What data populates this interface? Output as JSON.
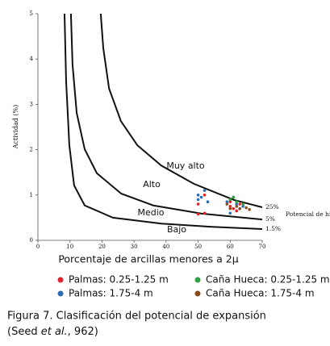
{
  "chart_data": {
    "type": "scatter",
    "y_label": "Actividad (%)",
    "x_label": "Porcentaje de arcillas menores a 2μ",
    "xlim": [
      0,
      70
    ],
    "xticks": [
      0,
      10,
      20,
      30,
      40,
      50,
      60,
      70
    ],
    "ylim": [
      0,
      5
    ],
    "yticks": [
      0,
      1,
      2,
      3,
      4,
      5
    ],
    "zones": [
      "Muy alto",
      "Alto",
      "Medio",
      "Bajo"
    ],
    "curve_group_label": "Potencial de hinchamiento",
    "series": [
      {
        "name": "25%",
        "mode": "line",
        "color": "#111111",
        "x": [
          19.6,
          20.4,
          22.2,
          25.9,
          31.0,
          38.5,
          48.6,
          61.2,
          70
        ],
        "values": [
          5.0,
          4.24,
          3.35,
          2.63,
          2.1,
          1.65,
          1.25,
          0.89,
          0.73
        ]
      },
      {
        "name": "5%",
        "mode": "line",
        "color": "#111111",
        "x": [
          10.3,
          10.8,
          12.1,
          14.6,
          18.4,
          26.0,
          36.0,
          51.1,
          70
        ],
        "values": [
          5.0,
          3.88,
          2.81,
          2.01,
          1.48,
          1.03,
          0.77,
          0.59,
          0.46
        ]
      },
      {
        "name": "1.5%",
        "mode": "line",
        "color": "#111111",
        "x": [
          8.3,
          8.8,
          9.8,
          11.3,
          14.6,
          23.4,
          38.5,
          53.7,
          70
        ],
        "values": [
          5.0,
          3.52,
          2.1,
          1.21,
          0.77,
          0.5,
          0.37,
          0.3,
          0.25
        ]
      },
      {
        "name": "Palmas: 0.25-1.25 m",
        "mode": "marker",
        "color": "#e0262b",
        "x": [
          50,
          50,
          52,
          52,
          60,
          61,
          62,
          60,
          63
        ],
        "values": [
          0.8,
          0.58,
          0.6,
          1.0,
          0.75,
          0.7,
          0.65,
          0.85,
          0.8
        ]
      },
      {
        "name": "Palmas: 1.75-4 m",
        "mode": "marker",
        "color": "#2a6db5",
        "x": [
          50,
          51,
          52,
          50,
          53,
          59,
          60,
          61,
          62,
          63,
          64
        ],
        "values": [
          1.0,
          0.95,
          1.1,
          0.9,
          0.85,
          0.85,
          0.6,
          0.95,
          0.8,
          0.7,
          0.75
        ]
      },
      {
        "name": "Caña Hueca: 0.25-1.25 m",
        "mode": "marker",
        "color": "#2ea043",
        "x": [
          60,
          61,
          62,
          64
        ],
        "values": [
          0.9,
          0.95,
          0.85,
          0.8
        ]
      },
      {
        "name": "Caña Hueca: 1.75-4 m",
        "mode": "marker",
        "color": "#8b4a1c",
        "x": [
          59,
          60,
          62,
          63,
          65,
          66
        ],
        "values": [
          0.8,
          0.7,
          0.75,
          0.7,
          0.72,
          0.68
        ]
      }
    ]
  },
  "caption": {
    "line1": "Figura 7. Clasificación del potencial de expansión",
    "line2_start": "(Seed ",
    "line2_italic": "et al.",
    "line2_end": ", 962)"
  }
}
